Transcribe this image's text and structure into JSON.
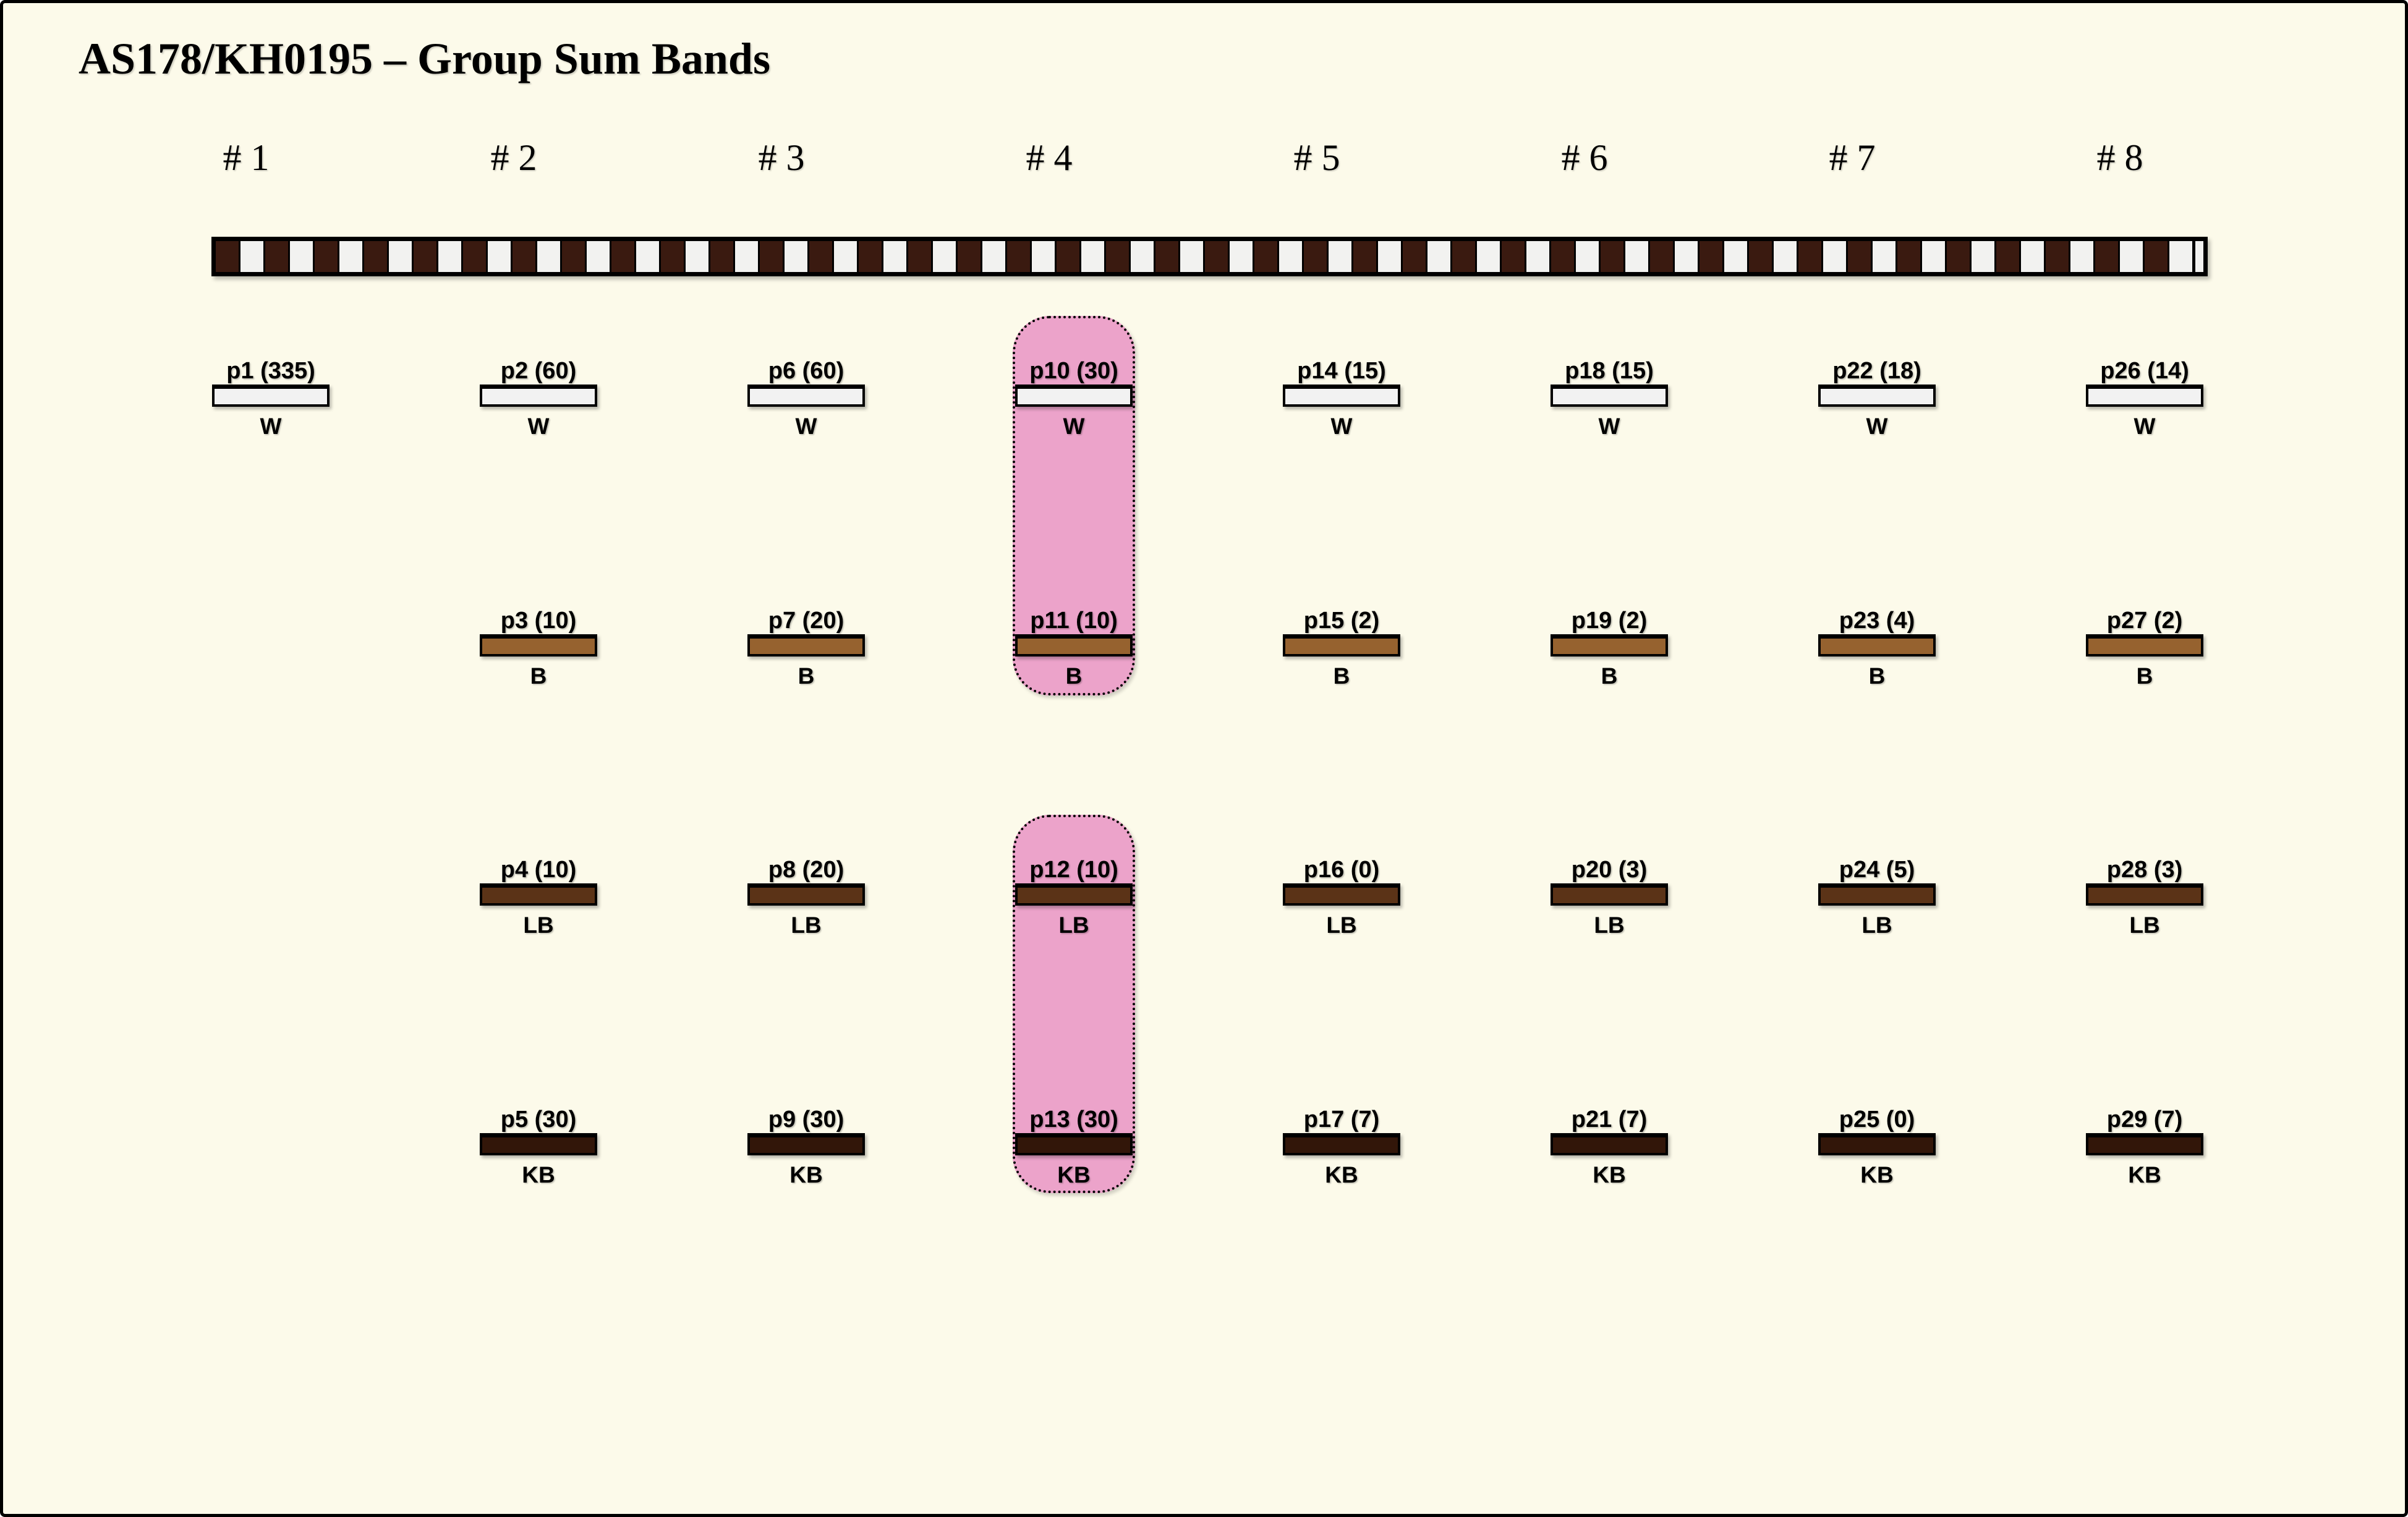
{
  "title": "AS178/KH0195 – Group Sum Bands",
  "row_labels": [
    "W",
    "B",
    "LB",
    "KB"
  ],
  "columns": [
    {
      "header": "# 1",
      "bands": [
        {
          "id": "p1",
          "count": 335,
          "label": "p1 (335)",
          "row": "W"
        }
      ]
    },
    {
      "header": "# 2",
      "bands": [
        {
          "id": "p2",
          "count": 60,
          "label": "p2 (60)",
          "row": "W"
        },
        {
          "id": "p3",
          "count": 10,
          "label": "p3 (10)",
          "row": "B"
        },
        {
          "id": "p4",
          "count": 10,
          "label": "p4 (10)",
          "row": "LB"
        },
        {
          "id": "p5",
          "count": 30,
          "label": "p5 (30)",
          "row": "KB"
        }
      ]
    },
    {
      "header": "# 3",
      "bands": [
        {
          "id": "p6",
          "count": 60,
          "label": "p6 (60)",
          "row": "W"
        },
        {
          "id": "p7",
          "count": 20,
          "label": "p7 (20)",
          "row": "B"
        },
        {
          "id": "p8",
          "count": 20,
          "label": "p8 (20)",
          "row": "LB"
        },
        {
          "id": "p9",
          "count": 30,
          "label": "p9 (30)",
          "row": "KB"
        }
      ]
    },
    {
      "header": "# 4",
      "highlighted": true,
      "bands": [
        {
          "id": "p10",
          "count": 30,
          "label": "p10 (30)",
          "row": "W"
        },
        {
          "id": "p11",
          "count": 10,
          "label": "p11 (10)",
          "row": "B"
        },
        {
          "id": "p12",
          "count": 10,
          "label": "p12 (10)",
          "row": "LB"
        },
        {
          "id": "p13",
          "count": 30,
          "label": "p13 (30)",
          "row": "KB"
        }
      ]
    },
    {
      "header": "# 5",
      "bands": [
        {
          "id": "p14",
          "count": 15,
          "label": "p14 (15)",
          "row": "W"
        },
        {
          "id": "p15",
          "count": 2,
          "label": "p15 (2)",
          "row": "B"
        },
        {
          "id": "p16",
          "count": 0,
          "label": "p16 (0)",
          "row": "LB"
        },
        {
          "id": "p17",
          "count": 7,
          "label": "p17 (7)",
          "row": "KB"
        }
      ]
    },
    {
      "header": "# 6",
      "bands": [
        {
          "id": "p18",
          "count": 15,
          "label": "p18 (15)",
          "row": "W"
        },
        {
          "id": "p19",
          "count": 2,
          "label": "p19 (2)",
          "row": "B"
        },
        {
          "id": "p20",
          "count": 3,
          "label": "p20 (3)",
          "row": "LB"
        },
        {
          "id": "p21",
          "count": 7,
          "label": "p21 (7)",
          "row": "KB"
        }
      ]
    },
    {
      "header": "# 7",
      "bands": [
        {
          "id": "p22",
          "count": 18,
          "label": "p22 (18)",
          "row": "W"
        },
        {
          "id": "p23",
          "count": 4,
          "label": "p23 (4)",
          "row": "B"
        },
        {
          "id": "p24",
          "count": 5,
          "label": "p24 (5)",
          "row": "LB"
        },
        {
          "id": "p25",
          "count": 0,
          "label": "p25 (0)",
          "row": "KB"
        }
      ]
    },
    {
      "header": "# 8",
      "bands": [
        {
          "id": "p26",
          "count": 14,
          "label": "p26 (14)",
          "row": "W"
        },
        {
          "id": "p27",
          "count": 2,
          "label": "p27 (2)",
          "row": "B"
        },
        {
          "id": "p28",
          "count": 3,
          "label": "p28 (3)",
          "row": "LB"
        },
        {
          "id": "p29",
          "count": 7,
          "label": "p29 (7)",
          "row": "KB"
        }
      ]
    }
  ],
  "highlight_groups": [
    {
      "column": "# 4",
      "rows": [
        "W",
        "B"
      ],
      "bands": [
        "p10",
        "p11"
      ]
    },
    {
      "column": "# 4",
      "rows": [
        "LB",
        "KB"
      ],
      "bands": [
        "p12",
        "p13"
      ]
    }
  ],
  "colors": {
    "background": "#FCFAEA",
    "band_W": "#F2F2F2",
    "band_B": "#96622F",
    "band_LB": "#5B3317",
    "band_KB": "#321609",
    "checker_dark": "#3A1A10",
    "checker_light": "#F2F2F0",
    "highlight_pink": "#ECA3CA",
    "outline": "#000000"
  }
}
